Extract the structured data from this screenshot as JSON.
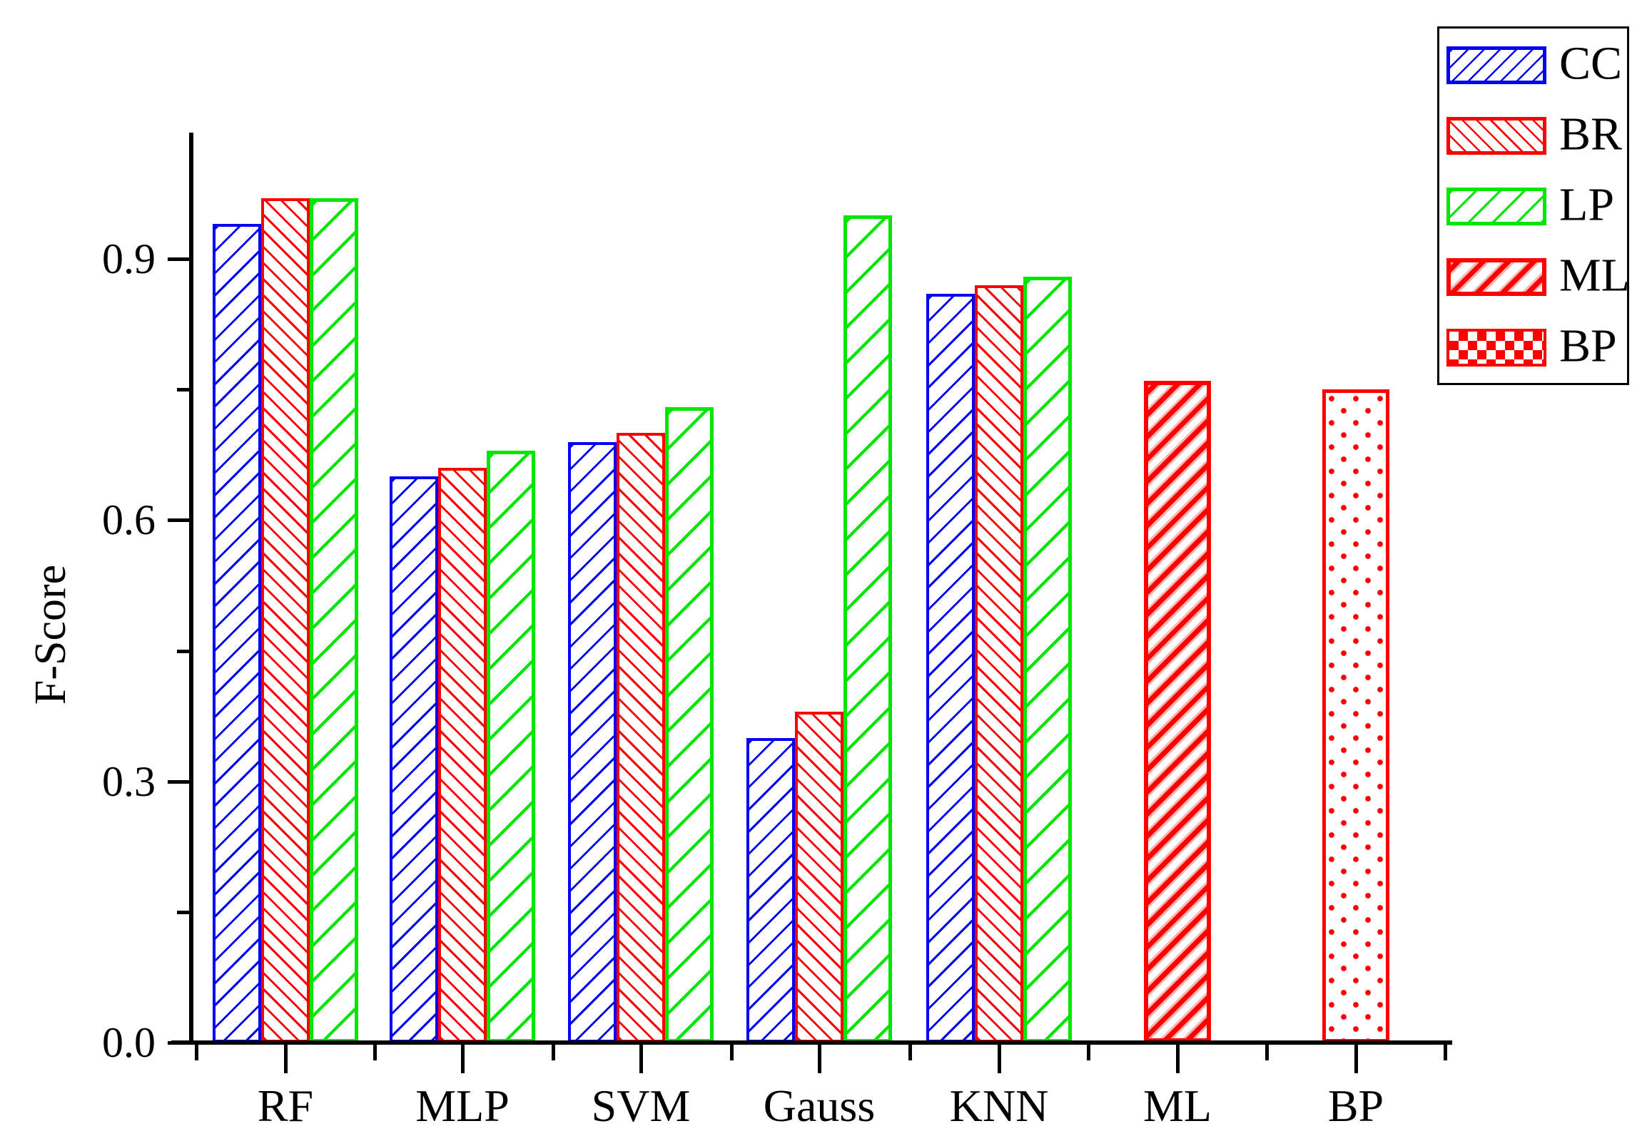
{
  "chart_data": {
    "type": "bar",
    "title": "",
    "xlabel": "",
    "ylabel": "F-Score",
    "categories": [
      "RF",
      "MLP",
      "SVM",
      "Gauss",
      "KNN",
      "ML",
      "BP"
    ],
    "series": [
      {
        "name": "CC",
        "color": "#0202f2",
        "hatch": "diagonal-forward",
        "values": [
          0.94,
          0.65,
          0.69,
          0.35,
          0.86,
          null,
          null
        ]
      },
      {
        "name": "BR",
        "color": "#ff0000",
        "hatch": "diagonal-back",
        "values": [
          0.97,
          0.66,
          0.7,
          0.38,
          0.87,
          null,
          null
        ]
      },
      {
        "name": "LP",
        "color": "#00e600",
        "hatch": "diagonal-forward-sparse",
        "values": [
          0.97,
          0.68,
          0.73,
          0.95,
          0.88,
          null,
          null
        ]
      },
      {
        "name": "ML",
        "color": "#ff0000",
        "hatch": "diagonal-thick",
        "values": [
          null,
          null,
          null,
          null,
          null,
          0.76,
          null
        ]
      },
      {
        "name": "BP",
        "color": "#ff0000",
        "hatch": "checker-dots",
        "values": [
          null,
          null,
          null,
          null,
          null,
          null,
          0.75
        ]
      }
    ],
    "yticks": [
      0.0,
      0.3,
      0.6,
      0.9
    ],
    "yticks_minor": [
      0.15,
      0.45,
      0.75
    ],
    "ylim": [
      0,
      1.045
    ],
    "grid": false,
    "legend_position": "top-right",
    "legend_entries": [
      "CC",
      "BR",
      "LP",
      "ML",
      "BP"
    ]
  }
}
